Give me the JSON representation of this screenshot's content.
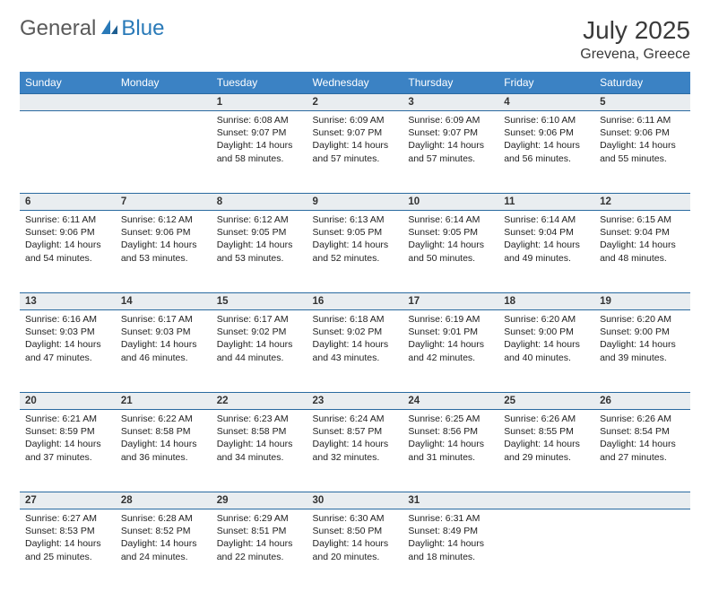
{
  "brand": {
    "general": "General",
    "blue": "Blue"
  },
  "header": {
    "title": "July 2025",
    "location": "Grevena, Greece"
  },
  "style": {
    "header_bg": "#3b82c4",
    "header_text": "#ffffff",
    "daynum_bg": "#e9edf0",
    "row_border": "#2a6aa0",
    "logo_gray": "#5a5a5a",
    "logo_blue": "#2a7ab8",
    "text_color": "#222222"
  },
  "weekdays": [
    "Sunday",
    "Monday",
    "Tuesday",
    "Wednesday",
    "Thursday",
    "Friday",
    "Saturday"
  ],
  "weeks": [
    [
      null,
      null,
      {
        "n": "1",
        "sr": "6:08 AM",
        "ss": "9:07 PM",
        "dl": "14 hours and 58 minutes."
      },
      {
        "n": "2",
        "sr": "6:09 AM",
        "ss": "9:07 PM",
        "dl": "14 hours and 57 minutes."
      },
      {
        "n": "3",
        "sr": "6:09 AM",
        "ss": "9:07 PM",
        "dl": "14 hours and 57 minutes."
      },
      {
        "n": "4",
        "sr": "6:10 AM",
        "ss": "9:06 PM",
        "dl": "14 hours and 56 minutes."
      },
      {
        "n": "5",
        "sr": "6:11 AM",
        "ss": "9:06 PM",
        "dl": "14 hours and 55 minutes."
      }
    ],
    [
      {
        "n": "6",
        "sr": "6:11 AM",
        "ss": "9:06 PM",
        "dl": "14 hours and 54 minutes."
      },
      {
        "n": "7",
        "sr": "6:12 AM",
        "ss": "9:06 PM",
        "dl": "14 hours and 53 minutes."
      },
      {
        "n": "8",
        "sr": "6:12 AM",
        "ss": "9:05 PM",
        "dl": "14 hours and 53 minutes."
      },
      {
        "n": "9",
        "sr": "6:13 AM",
        "ss": "9:05 PM",
        "dl": "14 hours and 52 minutes."
      },
      {
        "n": "10",
        "sr": "6:14 AM",
        "ss": "9:05 PM",
        "dl": "14 hours and 50 minutes."
      },
      {
        "n": "11",
        "sr": "6:14 AM",
        "ss": "9:04 PM",
        "dl": "14 hours and 49 minutes."
      },
      {
        "n": "12",
        "sr": "6:15 AM",
        "ss": "9:04 PM",
        "dl": "14 hours and 48 minutes."
      }
    ],
    [
      {
        "n": "13",
        "sr": "6:16 AM",
        "ss": "9:03 PM",
        "dl": "14 hours and 47 minutes."
      },
      {
        "n": "14",
        "sr": "6:17 AM",
        "ss": "9:03 PM",
        "dl": "14 hours and 46 minutes."
      },
      {
        "n": "15",
        "sr": "6:17 AM",
        "ss": "9:02 PM",
        "dl": "14 hours and 44 minutes."
      },
      {
        "n": "16",
        "sr": "6:18 AM",
        "ss": "9:02 PM",
        "dl": "14 hours and 43 minutes."
      },
      {
        "n": "17",
        "sr": "6:19 AM",
        "ss": "9:01 PM",
        "dl": "14 hours and 42 minutes."
      },
      {
        "n": "18",
        "sr": "6:20 AM",
        "ss": "9:00 PM",
        "dl": "14 hours and 40 minutes."
      },
      {
        "n": "19",
        "sr": "6:20 AM",
        "ss": "9:00 PM",
        "dl": "14 hours and 39 minutes."
      }
    ],
    [
      {
        "n": "20",
        "sr": "6:21 AM",
        "ss": "8:59 PM",
        "dl": "14 hours and 37 minutes."
      },
      {
        "n": "21",
        "sr": "6:22 AM",
        "ss": "8:58 PM",
        "dl": "14 hours and 36 minutes."
      },
      {
        "n": "22",
        "sr": "6:23 AM",
        "ss": "8:58 PM",
        "dl": "14 hours and 34 minutes."
      },
      {
        "n": "23",
        "sr": "6:24 AM",
        "ss": "8:57 PM",
        "dl": "14 hours and 32 minutes."
      },
      {
        "n": "24",
        "sr": "6:25 AM",
        "ss": "8:56 PM",
        "dl": "14 hours and 31 minutes."
      },
      {
        "n": "25",
        "sr": "6:26 AM",
        "ss": "8:55 PM",
        "dl": "14 hours and 29 minutes."
      },
      {
        "n": "26",
        "sr": "6:26 AM",
        "ss": "8:54 PM",
        "dl": "14 hours and 27 minutes."
      }
    ],
    [
      {
        "n": "27",
        "sr": "6:27 AM",
        "ss": "8:53 PM",
        "dl": "14 hours and 25 minutes."
      },
      {
        "n": "28",
        "sr": "6:28 AM",
        "ss": "8:52 PM",
        "dl": "14 hours and 24 minutes."
      },
      {
        "n": "29",
        "sr": "6:29 AM",
        "ss": "8:51 PM",
        "dl": "14 hours and 22 minutes."
      },
      {
        "n": "30",
        "sr": "6:30 AM",
        "ss": "8:50 PM",
        "dl": "14 hours and 20 minutes."
      },
      {
        "n": "31",
        "sr": "6:31 AM",
        "ss": "8:49 PM",
        "dl": "14 hours and 18 minutes."
      },
      null,
      null
    ]
  ],
  "labels": {
    "sunrise": "Sunrise:",
    "sunset": "Sunset:",
    "daylight": "Daylight:"
  }
}
